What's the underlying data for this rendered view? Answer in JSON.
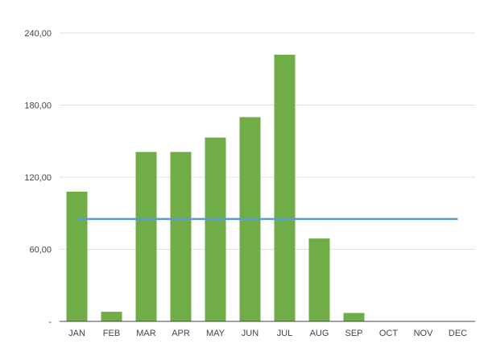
{
  "chart_data": {
    "type": "bar",
    "categories": [
      "JAN",
      "FEB",
      "MAR",
      "APR",
      "MAY",
      "JUN",
      "JUL",
      "AUG",
      "SEP",
      "OCT",
      "NOV",
      "DEC"
    ],
    "values": [
      108,
      8,
      141,
      141,
      153,
      170,
      222,
      69,
      7,
      0,
      0,
      0
    ],
    "reference_line": {
      "value": 85.2
    },
    "y_ticks": [
      "-",
      "60,00",
      "120,00",
      "180,00",
      "240,00"
    ],
    "ylim": [
      0,
      240
    ],
    "grid": true,
    "colors": {
      "bar": "#70ad47",
      "reference_line": "#5b9bd5",
      "grid": "#e0e0e0",
      "axis": "#444444"
    }
  }
}
